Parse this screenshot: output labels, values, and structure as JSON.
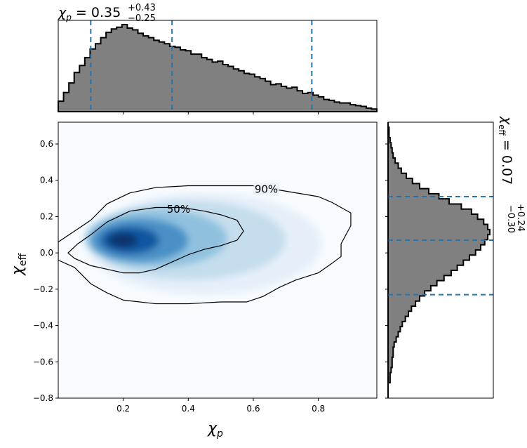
{
  "chart_data": [
    {
      "panel": "top-marginal",
      "type": "histogram",
      "title": {
        "prefix": "χ",
        "sub": "p",
        "eq": " = 0.35",
        "sup": "+0.43",
        "lo": "−0.25"
      },
      "x_range": [
        0.0,
        0.98
      ],
      "density_normalized": [
        0.12,
        0.22,
        0.33,
        0.45,
        0.53,
        0.62,
        0.72,
        0.78,
        0.85,
        0.91,
        0.95,
        0.97,
        1.0,
        0.96,
        0.94,
        0.9,
        0.87,
        0.85,
        0.82,
        0.8,
        0.78,
        0.75,
        0.74,
        0.71,
        0.7,
        0.66,
        0.66,
        0.62,
        0.6,
        0.57,
        0.58,
        0.54,
        0.52,
        0.49,
        0.47,
        0.44,
        0.43,
        0.4,
        0.38,
        0.35,
        0.31,
        0.32,
        0.29,
        0.27,
        0.28,
        0.24,
        0.21,
        0.22,
        0.19,
        0.17,
        0.14,
        0.13,
        0.11,
        0.1,
        0.1,
        0.08,
        0.07,
        0.06,
        0.04,
        0.03
      ],
      "quantile_lines": [
        0.1,
        0.35,
        0.78
      ],
      "line_color": "#1f77b4",
      "fill_color": "#808080"
    },
    {
      "panel": "joint",
      "type": "heatmap",
      "xlabel": {
        "sym": "χ",
        "sub": "p"
      },
      "ylabel": {
        "sym": "χ",
        "sub": "eff"
      },
      "xlim": [
        0.0,
        0.98
      ],
      "ylim": [
        -0.8,
        0.72
      ],
      "x_ticks": [
        0.2,
        0.4,
        0.6,
        0.8
      ],
      "y_ticks": [
        0.6,
        0.4,
        0.2,
        0.0,
        -0.2,
        -0.4,
        -0.6,
        -0.8
      ],
      "colormap": "Blues",
      "contour_labels": [
        "50%",
        "90%"
      ],
      "contour_90": [
        [
          0.0,
          0.06
        ],
        [
          0.05,
          0.12
        ],
        [
          0.1,
          0.18
        ],
        [
          0.15,
          0.27
        ],
        [
          0.22,
          0.33
        ],
        [
          0.3,
          0.36
        ],
        [
          0.4,
          0.37
        ],
        [
          0.5,
          0.37
        ],
        [
          0.6,
          0.37
        ],
        [
          0.7,
          0.34
        ],
        [
          0.8,
          0.31
        ],
        [
          0.84,
          0.28
        ],
        [
          0.9,
          0.22
        ],
        [
          0.9,
          0.15
        ],
        [
          0.87,
          0.05
        ],
        [
          0.87,
          -0.02
        ],
        [
          0.84,
          -0.06
        ],
        [
          0.8,
          -0.11
        ],
        [
          0.73,
          -0.15
        ],
        [
          0.68,
          -0.19
        ],
        [
          0.63,
          -0.24
        ],
        [
          0.58,
          -0.27
        ],
        [
          0.5,
          -0.27
        ],
        [
          0.4,
          -0.28
        ],
        [
          0.3,
          -0.28
        ],
        [
          0.2,
          -0.26
        ],
        [
          0.15,
          -0.22
        ],
        [
          0.1,
          -0.17
        ],
        [
          0.05,
          -0.08
        ],
        [
          0.0,
          -0.04
        ]
      ],
      "contour_50": [
        [
          0.03,
          0.0
        ],
        [
          0.06,
          0.05
        ],
        [
          0.1,
          0.1
        ],
        [
          0.15,
          0.17
        ],
        [
          0.22,
          0.23
        ],
        [
          0.3,
          0.25
        ],
        [
          0.38,
          0.25
        ],
        [
          0.45,
          0.23
        ],
        [
          0.5,
          0.21
        ],
        [
          0.55,
          0.18
        ],
        [
          0.57,
          0.12
        ],
        [
          0.55,
          0.07
        ],
        [
          0.5,
          0.04
        ],
        [
          0.45,
          0.02
        ],
        [
          0.4,
          -0.01
        ],
        [
          0.35,
          -0.05
        ],
        [
          0.3,
          -0.09
        ],
        [
          0.25,
          -0.11
        ],
        [
          0.2,
          -0.11
        ],
        [
          0.15,
          -0.09
        ],
        [
          0.1,
          -0.07
        ],
        [
          0.05,
          -0.03
        ],
        [
          0.03,
          0.0
        ]
      ]
    },
    {
      "panel": "right-marginal",
      "type": "histogram",
      "title": {
        "prefix": "χ",
        "sub": "eff",
        "eq": " = 0.07",
        "sup": "+0.24",
        "lo": "−0.30"
      },
      "y_range": [
        -0.8,
        0.72
      ],
      "density_normalized": [
        0.0,
        0.0,
        0.0,
        0.02,
        0.02,
        0.03,
        0.04,
        0.04,
        0.05,
        0.05,
        0.06,
        0.08,
        0.1,
        0.12,
        0.14,
        0.17,
        0.2,
        0.23,
        0.27,
        0.31,
        0.36,
        0.42,
        0.48,
        0.55,
        0.62,
        0.68,
        0.74,
        0.8,
        0.86,
        0.91,
        0.95,
        0.98,
        1.0,
        0.98,
        0.94,
        0.88,
        0.82,
        0.72,
        0.6,
        0.5,
        0.4,
        0.31,
        0.24,
        0.18,
        0.13,
        0.1,
        0.07,
        0.05,
        0.04,
        0.03,
        0.02,
        0.01,
        0.01,
        0.0
      ],
      "quantile_lines": [
        -0.23,
        0.07,
        0.31
      ],
      "line_color": "#1f77b4",
      "fill_color": "#808080"
    }
  ]
}
